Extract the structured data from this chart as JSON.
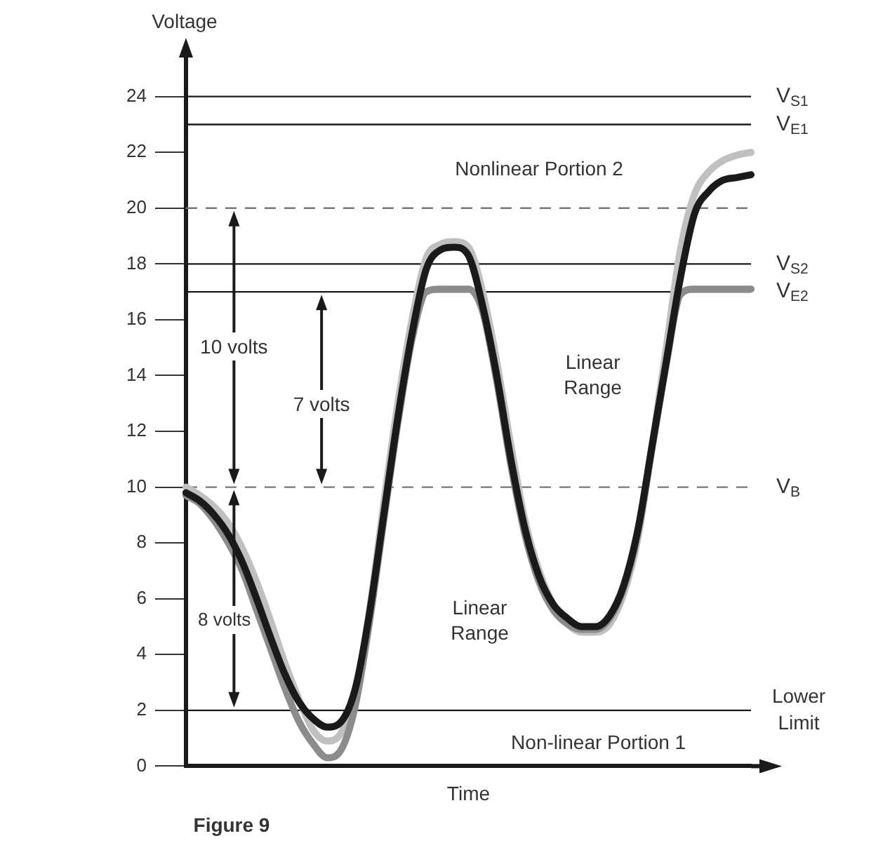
{
  "chart_data": {
    "type": "line",
    "xlabel": "Time",
    "ylabel": "Voltage",
    "categories": [
      null,
      null,
      null,
      null,
      null,
      null,
      null,
      null,
      null,
      null,
      null,
      null,
      null,
      null,
      null,
      null,
      null,
      null,
      null,
      null,
      null,
      null,
      null,
      null,
      null,
      null,
      null,
      null,
      null,
      null,
      null,
      null,
      null,
      null,
      null,
      null,
      null,
      null,
      null,
      null,
      null
    ],
    "series": [
      {
        "color": "#c0c0c0",
        "values": [
          10.0,
          9.7,
          9.3,
          8.7,
          7.8,
          6.6,
          5.2,
          3.7,
          2.4,
          1.3,
          0.9,
          1.2,
          2.6,
          5.6,
          9.4,
          13.0,
          16.0,
          18.2,
          18.7,
          18.8,
          18.6,
          17.0,
          14.5,
          11.5,
          8.8,
          7.0,
          5.8,
          5.1,
          4.8,
          4.8,
          5.1,
          6.2,
          8.2,
          11.5,
          15.0,
          18.5,
          20.5,
          21.3,
          21.7,
          21.9,
          22.0
        ]
      },
      {
        "color": "#8c8c8c",
        "values": [
          9.7,
          9.4,
          8.8,
          8.0,
          7.0,
          5.6,
          4.2,
          2.8,
          1.6,
          0.8,
          0.3,
          0.6,
          2.2,
          5.2,
          8.8,
          12.3,
          15.3,
          17.0,
          17.1,
          17.1,
          17.1,
          16.3,
          13.8,
          10.8,
          8.3,
          6.6,
          5.6,
          5.1,
          4.9,
          4.9,
          5.3,
          6.4,
          8.4,
          11.4,
          14.4,
          16.9,
          17.1,
          17.1,
          17.1,
          17.1,
          17.1
        ]
      },
      {
        "color": "#1a1a1a",
        "values": [
          9.8,
          9.5,
          9.0,
          8.3,
          7.3,
          6.0,
          4.6,
          3.3,
          2.3,
          1.7,
          1.4,
          1.6,
          2.8,
          5.5,
          9.0,
          12.5,
          15.5,
          17.8,
          18.5,
          18.6,
          18.3,
          16.5,
          14.0,
          11.0,
          8.5,
          6.8,
          5.8,
          5.3,
          5.0,
          5.0,
          5.4,
          6.5,
          8.5,
          11.5,
          14.5,
          17.5,
          19.8,
          20.6,
          21.0,
          21.1,
          21.2
        ]
      }
    ],
    "ylim": [
      0,
      25.5
    ],
    "yticks": [
      0,
      2,
      4,
      6,
      8,
      10,
      12,
      14,
      16,
      18,
      20,
      22,
      24
    ],
    "tick_labels": "y",
    "ref_lines": [
      {
        "axis": "y",
        "value": 24,
        "label": "V$_{S1}$",
        "color": "#1a1a1a"
      },
      {
        "axis": "y",
        "value": 23,
        "label": "V$_{E1}$",
        "color": "#1a1a1a"
      },
      {
        "axis": "y",
        "value": 20,
        "color": "#777777",
        "line_style": "dashed"
      },
      {
        "axis": "y",
        "value": 18,
        "label": "V$_{S2}$",
        "color": "#1a1a1a"
      },
      {
        "axis": "y",
        "value": 17,
        "label": "V$_{E2}$",
        "color": "#1a1a1a"
      },
      {
        "axis": "y",
        "value": 10,
        "label": "V$_{B}$",
        "color": "#777777",
        "line_style": "dashed"
      },
      {
        "axis": "y",
        "value": 2,
        "label": "Lower Limit",
        "color": "#1a1a1a"
      }
    ],
    "annotations": [
      "Nonlinear Portion 2",
      "Linear Range",
      "Linear Range",
      "Non-linear Portion 1",
      "10 volts",
      "7 volts",
      "8 volts",
      "Figure 9"
    ]
  }
}
